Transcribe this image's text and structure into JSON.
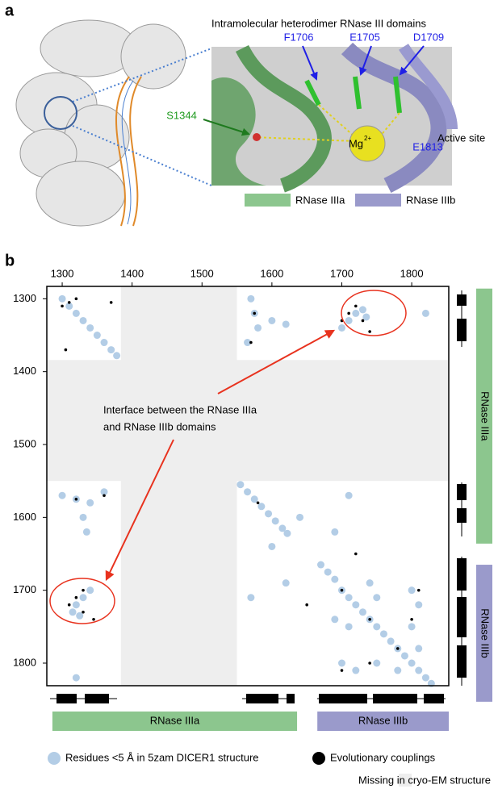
{
  "panel_a": {
    "letter": "a",
    "title": "Intramolecular heterodimer RNase III domains",
    "residues": [
      {
        "label": "F1706",
        "color": "#1f1fe6"
      },
      {
        "label": "E1705",
        "color": "#1f1fe6"
      },
      {
        "label": "D1709",
        "color": "#1f1fe6"
      },
      {
        "label": "S1344",
        "color": "#1e9a1e"
      },
      {
        "label": "E1813",
        "color": "#1f1fe6"
      }
    ],
    "ion": "Mg",
    "ion_charge": "2+",
    "site": "Active site",
    "legend": [
      {
        "name": "RNase IIIa",
        "color": "#8cc68e"
      },
      {
        "name": "RNase IIIb",
        "color": "#9a9acb"
      }
    ]
  },
  "chart_data": {
    "type": "scatter",
    "panel_label": "b",
    "xlim": [
      1278,
      1853
    ],
    "ylim": [
      1283,
      1831
    ],
    "xticks": [
      1300,
      1400,
      1500,
      1600,
      1700,
      1800
    ],
    "yticks": [
      1300,
      1400,
      1500,
      1600,
      1700,
      1800
    ],
    "missing": {
      "name": "Missing in cryo-EM structure",
      "color": "#eeeeee",
      "range": [
        1384,
        1550
      ]
    },
    "annotation": [
      "Interface between the RNase IIIa",
      "and RNase IIIb domains"
    ],
    "domains": [
      {
        "name": "RNase IIIa",
        "start": 1286,
        "end": 1636,
        "color": "#8cc68e"
      },
      {
        "name": "RNase IIIb",
        "start": 1665,
        "end": 1853,
        "color": "#9a9acb"
      }
    ],
    "series": [
      {
        "name": "Residues <5 Å in 5zam DICER1 structure",
        "color": "#b3cde6",
        "x": [
          1300,
          1310,
          1320,
          1330,
          1340,
          1350,
          1360,
          1370,
          1378,
          1555,
          1565,
          1575,
          1585,
          1595,
          1605,
          1615,
          1622,
          1670,
          1680,
          1690,
          1700,
          1710,
          1720,
          1730,
          1740,
          1750,
          1760,
          1770,
          1780,
          1790,
          1800,
          1810,
          1820,
          1828,
          1700,
          1710,
          1720,
          1730,
          1735,
          1340,
          1330,
          1320,
          1315,
          1325,
          1570,
          1575,
          1580,
          1565,
          1600,
          1620,
          1300,
          1320,
          1340,
          1360,
          1330,
          1335,
          1800,
          1810,
          1800,
          1810,
          1740,
          1750,
          1700,
          1720,
          1750,
          1780,
          1690,
          1710,
          1600,
          1640,
          1620,
          1690,
          1570,
          1710,
          1320,
          1820
        ],
        "values": [
          1300,
          1310,
          1320,
          1330,
          1340,
          1350,
          1360,
          1370,
          1378,
          1555,
          1565,
          1575,
          1585,
          1595,
          1605,
          1615,
          1622,
          1665,
          1675,
          1685,
          1700,
          1710,
          1720,
          1730,
          1740,
          1750,
          1760,
          1770,
          1780,
          1790,
          1800,
          1810,
          1820,
          1828,
          1340,
          1330,
          1320,
          1315,
          1325,
          1700,
          1710,
          1720,
          1730,
          1735,
          1300,
          1320,
          1340,
          1360,
          1330,
          1335,
          1570,
          1575,
          1580,
          1565,
          1600,
          1620,
          1700,
          1720,
          1750,
          1780,
          1690,
          1710,
          1800,
          1810,
          1800,
          1810,
          1740,
          1750,
          1640,
          1600,
          1690,
          1620,
          1710,
          1570,
          1820,
          1320
        ]
      },
      {
        "name": "Evolutionary couplings",
        "color": "#000000",
        "x": [
          1310,
          1320,
          1300,
          1305,
          1370,
          1710,
          1720,
          1730,
          1740,
          1700,
          1320,
          1310,
          1330,
          1345,
          1330,
          1575,
          1570,
          1320,
          1360,
          1700,
          1740,
          1780,
          1800,
          1740,
          1700,
          1810,
          1580,
          1720,
          1650
        ],
        "values": [
          1305,
          1300,
          1310,
          1370,
          1305,
          1320,
          1310,
          1330,
          1345,
          1330,
          1710,
          1720,
          1730,
          1740,
          1700,
          1320,
          1360,
          1575,
          1570,
          1700,
          1740,
          1780,
          1740,
          1800,
          1810,
          1700,
          1580,
          1650,
          1720
        ]
      }
    ]
  }
}
